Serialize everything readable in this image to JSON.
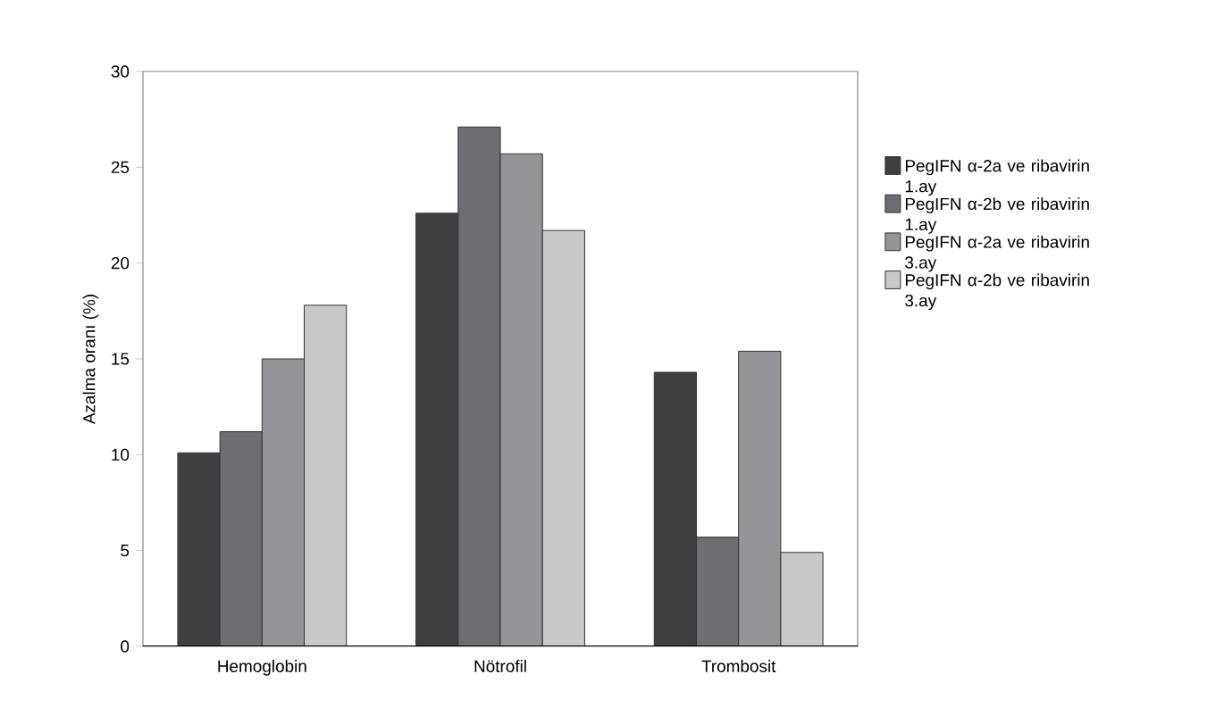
{
  "chart_data": {
    "type": "bar",
    "ylabel": "Azalma oranı (%)",
    "categories": [
      "Hemoglobin",
      "Nötrofil",
      "Trombosit"
    ],
    "series": [
      {
        "name": "PegIFN α-2a ve ribavirin 1.ay",
        "color": "#3f3f41",
        "values": [
          10.1,
          22.6,
          14.3
        ]
      },
      {
        "name": "PegIFN α-2b ve ribavirin 1.ay",
        "color": "#6d6e71",
        "values": [
          11.2,
          27.1,
          5.7
        ]
      },
      {
        "name": "PegIFN α-2a ve ribavirin 3.ay",
        "color": "#939598",
        "values": [
          15.0,
          25.7,
          15.4
        ]
      },
      {
        "name": "PegIFN α-2b ve ribavirin 3.ay",
        "color": "#c8c9cb",
        "values": [
          17.8,
          21.7,
          4.9
        ]
      }
    ],
    "ylim": [
      0,
      30
    ],
    "yticks": [
      0,
      5,
      10,
      15,
      20,
      25,
      30
    ],
    "grid": false,
    "legend": "right"
  }
}
